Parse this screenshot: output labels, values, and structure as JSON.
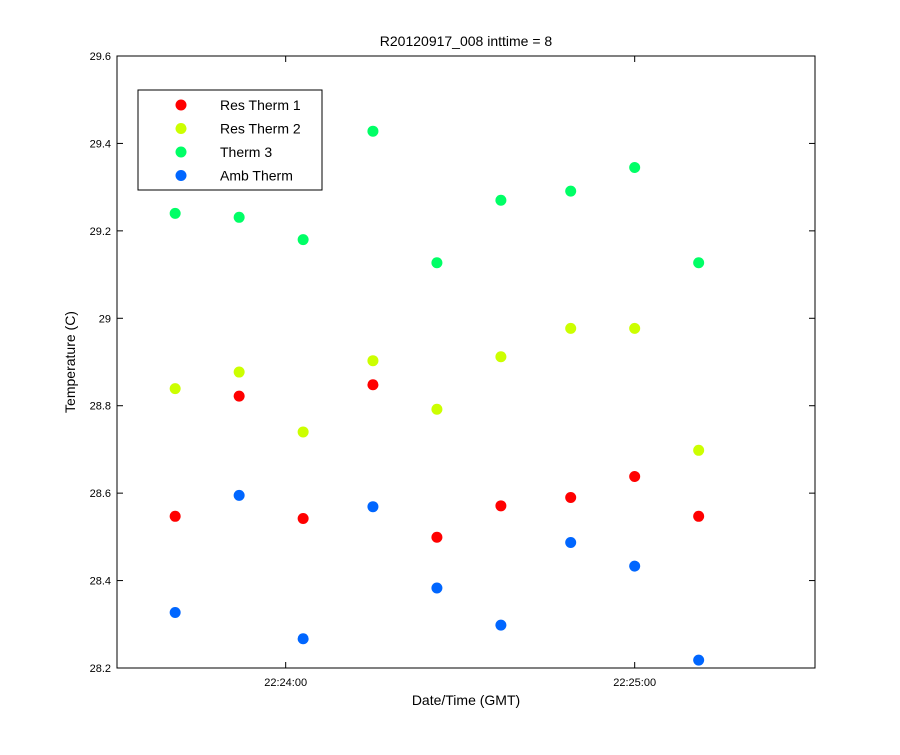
{
  "chart_data": {
    "type": "scatter",
    "title": "R20120917_008 inttime = 8",
    "xlabel": "Date/Time (GMT)",
    "ylabel": "Temperature (C)",
    "x_unit": "time of day (GMT)",
    "xlim": [
      "22:23:31",
      "22:25:31"
    ],
    "ylim": [
      28.2,
      29.6
    ],
    "x_ticks": [
      {
        "value": "22:24:00",
        "label": "22:24:00"
      },
      {
        "value": "22:25:00",
        "label": "22:25:00"
      }
    ],
    "y_ticks": [
      {
        "value": 28.2,
        "label": "28.2"
      },
      {
        "value": 28.4,
        "label": "28.4"
      },
      {
        "value": 28.6,
        "label": "28.6"
      },
      {
        "value": 28.8,
        "label": "28.8"
      },
      {
        "value": 29.0,
        "label": "29"
      },
      {
        "value": 29.2,
        "label": "29.2"
      },
      {
        "value": 29.4,
        "label": "29.4"
      },
      {
        "value": 29.6,
        "label": "29.6"
      }
    ],
    "grid": false,
    "legend": {
      "placement": "top-left"
    },
    "x": [
      "22:23:41",
      "22:23:52",
      "22:24:03",
      "22:24:15",
      "22:24:26",
      "22:24:37",
      "22:24:49",
      "22:25:00",
      "22:25:11"
    ],
    "series": [
      {
        "name": "Res Therm 1",
        "color": "#ff0000",
        "values": [
          28.547,
          28.822,
          28.542,
          28.848,
          28.499,
          28.571,
          28.59,
          28.638,
          28.547
        ]
      },
      {
        "name": "Res Therm 2",
        "color": "#ccff00",
        "values": [
          28.839,
          28.877,
          28.74,
          28.903,
          28.792,
          28.912,
          28.977,
          28.977,
          28.698
        ]
      },
      {
        "name": "Therm 3",
        "color": "#00ff66",
        "values": [
          29.24,
          29.231,
          29.18,
          29.428,
          29.127,
          29.27,
          29.291,
          29.345,
          29.127
        ]
      },
      {
        "name": "Amb Therm",
        "color": "#0066ff",
        "values": [
          28.327,
          28.595,
          28.267,
          28.569,
          28.383,
          28.298,
          28.487,
          28.433,
          28.218
        ]
      }
    ]
  }
}
